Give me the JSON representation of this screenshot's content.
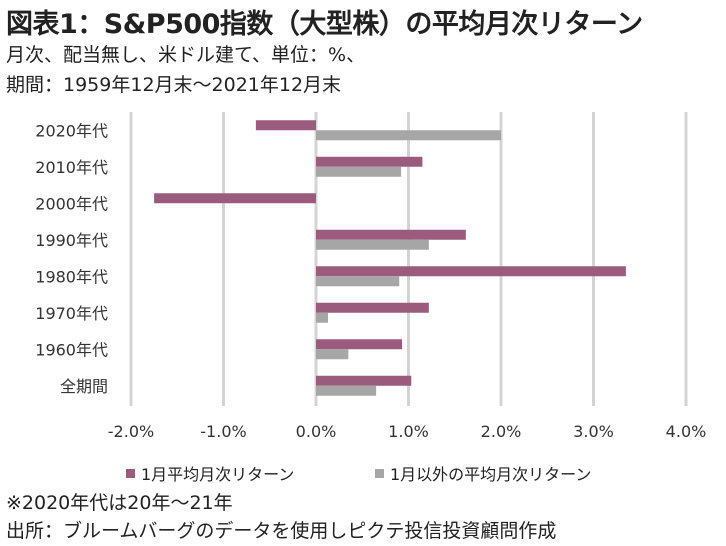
{
  "title": "図表1：S&P500指数（大型株）の平均月次リターン",
  "subtitle_line1": "月次、配当無し、米ドル建て、単位：%、",
  "subtitle_line2": "期間：1959年12月末～2021年12月末",
  "note": "※2020年代は20年～21年",
  "source": "出所：ブルームバーグのデータを使用しピクテ投信投資顧問作成",
  "colors": {
    "series1": "#9b5b7c",
    "series2": "#a6a6a6",
    "grid": "#d4d4d4"
  },
  "chart_data": {
    "type": "bar",
    "orientation": "horizontal",
    "title": "図表1：S&P500指数（大型株）の平均月次リターン",
    "xlabel": "",
    "ylabel": "",
    "xlim": [
      -2.0,
      4.0
    ],
    "x_ticks": [
      -2.0,
      -1.0,
      0.0,
      1.0,
      2.0,
      3.0,
      4.0
    ],
    "x_tick_labels": [
      "-2.0%",
      "-1.0%",
      "0.0%",
      "1.0%",
      "2.0%",
      "3.0%",
      "4.0%"
    ],
    "grid": "vertical",
    "legend_position": "bottom",
    "categories": [
      "2020年代",
      "2010年代",
      "2000年代",
      "1990年代",
      "1980年代",
      "1970年代",
      "1960年代",
      "全期間"
    ],
    "series": [
      {
        "name": "1月平均月次リターン",
        "values": [
          -0.65,
          1.15,
          -1.75,
          1.62,
          3.35,
          1.22,
          0.93,
          1.03
        ]
      },
      {
        "name": "1月以外の平均月次リターン",
        "values": [
          2.0,
          0.92,
          0.0,
          1.22,
          0.9,
          0.13,
          0.35,
          0.65
        ]
      }
    ]
  }
}
